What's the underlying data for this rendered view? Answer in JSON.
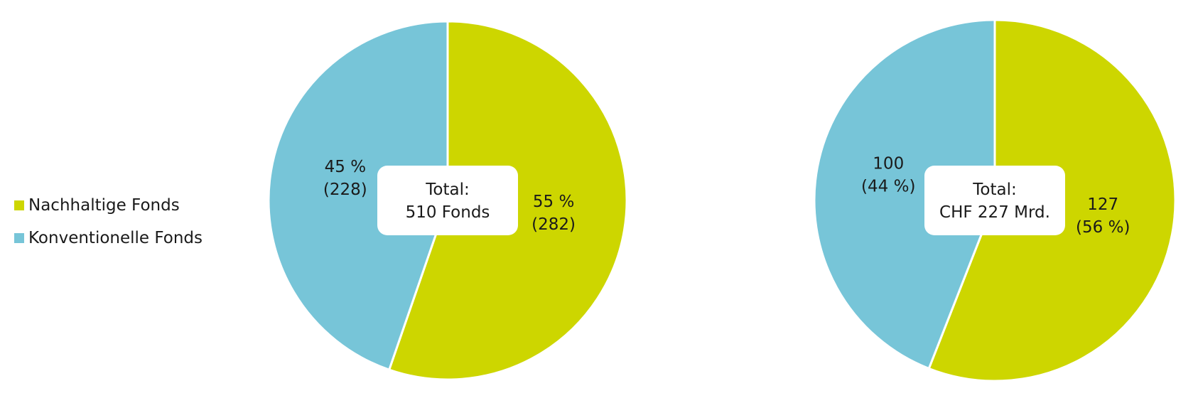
{
  "chart_data": [
    {
      "type": "pie",
      "center_label": [
        "Total:",
        "510 Fonds"
      ],
      "slices": [
        {
          "series": "Nachhaltige Fonds",
          "value": 282,
          "percent": 55,
          "label": [
            "55 %",
            "(282)"
          ]
        },
        {
          "series": "Konventionelle Fonds",
          "value": 228,
          "percent": 45,
          "label": [
            "45 %",
            "(228)"
          ]
        }
      ]
    },
    {
      "type": "pie",
      "center_label": [
        "Total:",
        "CHF 227 Mrd."
      ],
      "slices": [
        {
          "series": "Nachhaltige Fonds",
          "value": 127,
          "percent": 56,
          "label": [
            "127",
            "(56 %)"
          ]
        },
        {
          "series": "Konventionelle Fonds",
          "value": 100,
          "percent": 44,
          "label": [
            "100",
            "(44 %)"
          ]
        }
      ]
    }
  ],
  "legend": {
    "placement": "left",
    "items": [
      {
        "label": "Nachhaltige Fonds",
        "color": "#cdd600"
      },
      {
        "label": "Konventionelle Fonds",
        "color": "#77c5d8"
      }
    ]
  }
}
